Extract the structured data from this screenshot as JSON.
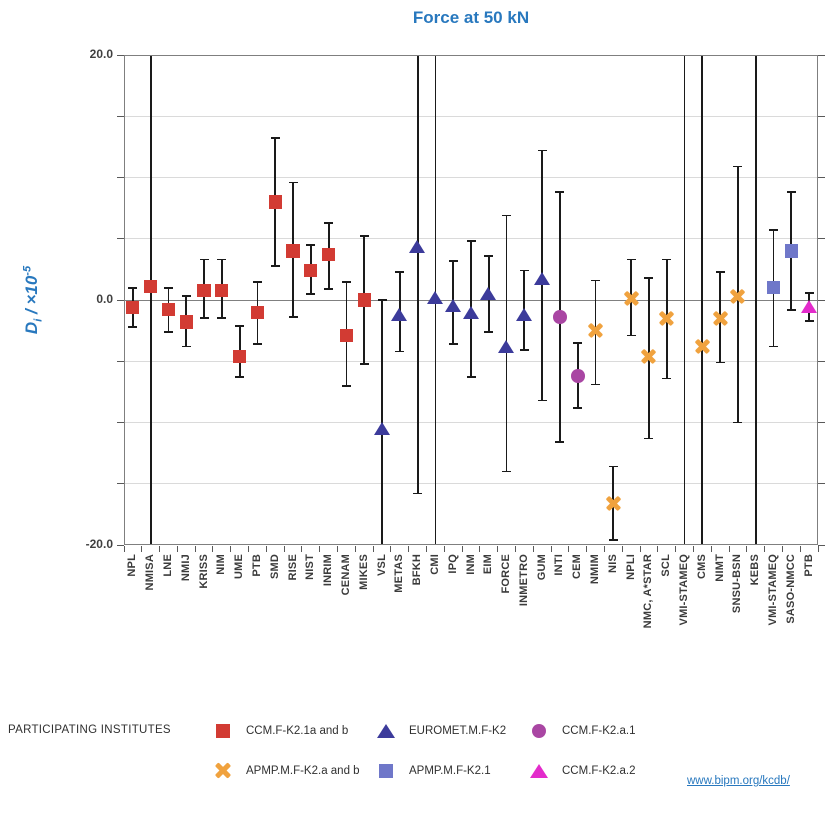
{
  "title": "Force at 50 kN",
  "y_axis": {
    "label_d": "D",
    "label_sub": "i",
    "label_mid": " / ×10",
    "label_sup": "-5",
    "tick_labels": [
      "20.0",
      "0.0",
      "-20.0"
    ]
  },
  "legend": {
    "heading": "PARTICIPATING INSTITUTES",
    "items": [
      {
        "label": "CCM.F-K2.1a and b",
        "group": "CCM.F-K2.1a and b"
      },
      {
        "label": "EUROMET.M.F-K2",
        "group": "EUROMET.M.F-K2"
      },
      {
        "label": "CCM.F-K2.a.1",
        "group": "CCM.F-K2.a.1"
      },
      {
        "label": "APMP.M.F-K2.a and b",
        "group": "APMP.M.F-K2.a and b"
      },
      {
        "label": "APMP.M.F-K2.1",
        "group": "APMP.M.F-K2.1"
      },
      {
        "label": "CCM.F-K2.a.2",
        "group": "CCM.F-K2.a.2"
      }
    ]
  },
  "link": {
    "text": "www.bipm.org/kcdb/"
  },
  "colors": {
    "title_blue": "#2878BE",
    "grid": "#dadada",
    "zero_line": "#808080",
    "error_bar": "#1a1a1a"
  },
  "chart_data": {
    "type": "scatter",
    "title": "Force at 50 kN",
    "ylabel": "Di / ×10^-5",
    "ylim": [
      -20,
      20
    ],
    "grid_step": 5,
    "grid": true,
    "legend_position": "bottom",
    "groups": {
      "CCM.F-K2.1a and b": {
        "marker": "square",
        "color": "#D23B33"
      },
      "EUROMET.M.F-K2": {
        "marker": "triangle",
        "color": "#3C3B9B"
      },
      "CCM.F-K2.a.1": {
        "marker": "circle",
        "color": "#A946A3"
      },
      "APMP.M.F-K2.a and b": {
        "marker": "xcross",
        "color": "#F0A23E"
      },
      "APMP.M.F-K2.1": {
        "marker": "square",
        "color": "#6F77C9"
      },
      "CCM.F-K2.a.2": {
        "marker": "triangle",
        "color": "#E32BCB"
      }
    },
    "points": [
      {
        "name": "NPL",
        "group": "CCM.F-K2.1a and b",
        "value": -0.6,
        "lo": -2.2,
        "hi": 1.0
      },
      {
        "name": "NMISA",
        "group": "CCM.F-K2.1a and b",
        "value": 1.1,
        "lo": -20,
        "hi": 20,
        "clip_lo": true,
        "clip_hi": true
      },
      {
        "name": "LNE",
        "group": "CCM.F-K2.1a and b",
        "value": -0.8,
        "lo": -2.6,
        "hi": 1.0
      },
      {
        "name": "NMIJ",
        "group": "CCM.F-K2.1a and b",
        "value": -1.8,
        "lo": -3.8,
        "hi": 0.3
      },
      {
        "name": "KRISS",
        "group": "CCM.F-K2.1a and b",
        "value": 0.8,
        "lo": -1.5,
        "hi": 3.3
      },
      {
        "name": "NIM",
        "group": "CCM.F-K2.1a and b",
        "value": 0.8,
        "lo": -1.5,
        "hi": 3.3
      },
      {
        "name": "UME",
        "group": "CCM.F-K2.1a and b",
        "value": -4.6,
        "lo": -6.3,
        "hi": -2.1
      },
      {
        "name": "PTB",
        "group": "CCM.F-K2.1a and b",
        "value": -1.0,
        "lo": -3.6,
        "hi": 1.5
      },
      {
        "name": "SMD",
        "group": "CCM.F-K2.1a and b",
        "value": 8.0,
        "lo": 2.8,
        "hi": 13.2
      },
      {
        "name": "RISE",
        "group": "CCM.F-K2.1a and b",
        "value": 4.0,
        "lo": -1.4,
        "hi": 9.6
      },
      {
        "name": "NIST",
        "group": "CCM.F-K2.1a and b",
        "value": 2.4,
        "lo": 0.5,
        "hi": 4.5
      },
      {
        "name": "INRIM",
        "group": "CCM.F-K2.1a and b",
        "value": 3.7,
        "lo": 0.9,
        "hi": 6.3
      },
      {
        "name": "CENAM",
        "group": "CCM.F-K2.1a and b",
        "value": -2.9,
        "lo": -7.0,
        "hi": 1.5
      },
      {
        "name": "MIKES",
        "group": "CCM.F-K2.1a and b",
        "value": 0.0,
        "lo": -5.2,
        "hi": 5.2
      },
      {
        "name": "VSL",
        "group": "EUROMET.M.F-K2",
        "value": -10.5,
        "lo": -20,
        "hi": 0.0,
        "clip_lo": true
      },
      {
        "name": "METAS",
        "group": "EUROMET.M.F-K2",
        "value": -1.2,
        "lo": -4.2,
        "hi": 2.3
      },
      {
        "name": "BFKH",
        "group": "EUROMET.M.F-K2",
        "value": 4.3,
        "lo": -15.8,
        "hi": 20,
        "clip_hi": true
      },
      {
        "name": "CMI",
        "group": "EUROMET.M.F-K2",
        "value": 0.2,
        "lo": -20,
        "hi": 20,
        "clip_lo": true,
        "clip_hi": true
      },
      {
        "name": "IPQ",
        "group": "EUROMET.M.F-K2",
        "value": -0.5,
        "lo": -3.6,
        "hi": 3.2
      },
      {
        "name": "INM",
        "group": "EUROMET.M.F-K2",
        "value": -1.1,
        "lo": -6.3,
        "hi": 4.8
      },
      {
        "name": "EIM",
        "group": "EUROMET.M.F-K2",
        "value": 0.5,
        "lo": -2.6,
        "hi": 3.6
      },
      {
        "name": "FORCE",
        "group": "EUROMET.M.F-K2",
        "value": -3.8,
        "lo": -14.0,
        "hi": 6.9
      },
      {
        "name": "INMETRO",
        "group": "EUROMET.M.F-K2",
        "value": -1.2,
        "lo": -4.1,
        "hi": 2.4
      },
      {
        "name": "GUM",
        "group": "EUROMET.M.F-K2",
        "value": 1.7,
        "lo": -8.2,
        "hi": 12.2
      },
      {
        "name": "INTI",
        "group": "CCM.F-K2.a.1",
        "value": -1.4,
        "lo": -11.6,
        "hi": 8.8
      },
      {
        "name": "CEM",
        "group": "CCM.F-K2.a.1",
        "value": -6.2,
        "lo": -8.8,
        "hi": -3.5
      },
      {
        "name": "NMIM",
        "group": "APMP.M.F-K2.a and b",
        "value": -2.5,
        "lo": -6.9,
        "hi": 1.6
      },
      {
        "name": "NIS",
        "group": "APMP.M.F-K2.a and b",
        "value": -16.6,
        "lo": -19.6,
        "hi": -13.6
      },
      {
        "name": "NPLI",
        "group": "APMP.M.F-K2.a and b",
        "value": 0.1,
        "lo": -2.9,
        "hi": 3.3
      },
      {
        "name": "NMC, A*STAR",
        "group": "APMP.M.F-K2.a and b",
        "value": -4.6,
        "lo": -11.3,
        "hi": 1.8
      },
      {
        "name": "SCL",
        "group": "APMP.M.F-K2.a and b",
        "value": -1.5,
        "lo": -6.4,
        "hi": 3.3
      },
      {
        "name": "VMI-STAMEQ",
        "group": "APMP.M.F-K2.a and b",
        "value": null,
        "lo": -20,
        "hi": 20,
        "clip_lo": true,
        "clip_hi": true,
        "marker": "none"
      },
      {
        "name": "CMS",
        "group": "APMP.M.F-K2.a and b",
        "value": -3.8,
        "lo": -20,
        "hi": 20,
        "clip_lo": true,
        "clip_hi": true
      },
      {
        "name": "NIMT",
        "group": "APMP.M.F-K2.a and b",
        "value": -1.5,
        "lo": -5.1,
        "hi": 2.3
      },
      {
        "name": "SNSU-BSN",
        "group": "APMP.M.F-K2.a and b",
        "value": 0.3,
        "lo": -10.0,
        "hi": 10.9
      },
      {
        "name": "KEBS",
        "group": "APMP.M.F-K2.a and b",
        "value": null,
        "lo": -20,
        "hi": 20,
        "clip_lo": true,
        "clip_hi": true,
        "marker": "none"
      },
      {
        "name": "VMI-STAMEQ",
        "group": "APMP.M.F-K2.1",
        "value": 1.0,
        "lo": -3.8,
        "hi": 5.7
      },
      {
        "name": "SASO-NMCC",
        "group": "APMP.M.F-K2.1",
        "value": 4.0,
        "lo": -0.8,
        "hi": 8.8
      },
      {
        "name": "PTB",
        "group": "CCM.F-K2.a.2",
        "value": -0.6,
        "lo": -1.7,
        "hi": 0.6
      }
    ]
  }
}
